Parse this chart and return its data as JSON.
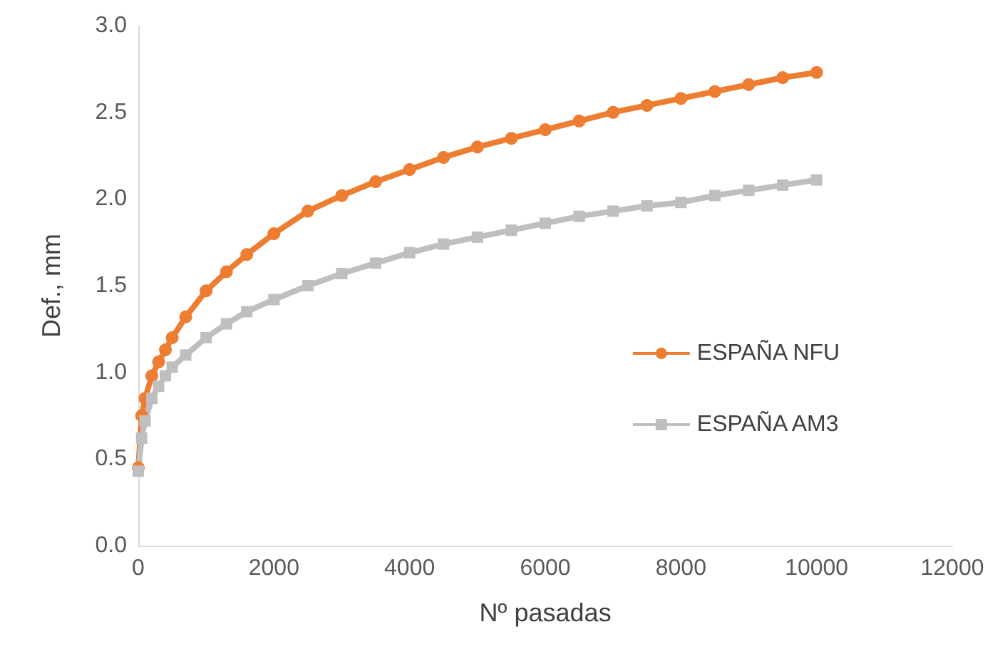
{
  "chart_data": {
    "type": "line",
    "xlabel": "Nº pasadas",
    "ylabel": "Def., mm",
    "x": [
      0,
      50,
      100,
      200,
      300,
      400,
      500,
      700,
      1000,
      1300,
      1600,
      2000,
      2500,
      3000,
      3500,
      4000,
      4500,
      5000,
      5500,
      6000,
      6500,
      7000,
      7500,
      8000,
      8500,
      9000,
      9500,
      10000
    ],
    "series": [
      {
        "name": "ESPAÑA NFU",
        "color": "#ed7d31",
        "marker": "circle",
        "values": [
          0.45,
          0.75,
          0.85,
          0.98,
          1.06,
          1.13,
          1.2,
          1.32,
          1.47,
          1.58,
          1.68,
          1.8,
          1.93,
          2.02,
          2.1,
          2.17,
          2.24,
          2.3,
          2.35,
          2.4,
          2.45,
          2.5,
          2.54,
          2.58,
          2.62,
          2.66,
          2.7,
          2.73
        ]
      },
      {
        "name": "ESPAÑA AM3",
        "color": "#bfbfbf",
        "marker": "square",
        "values": [
          0.43,
          0.62,
          0.72,
          0.85,
          0.92,
          0.98,
          1.03,
          1.1,
          1.2,
          1.28,
          1.35,
          1.42,
          1.5,
          1.57,
          1.63,
          1.69,
          1.74,
          1.78,
          1.82,
          1.86,
          1.9,
          1.93,
          1.96,
          1.98,
          2.02,
          2.05,
          2.08,
          2.11
        ]
      }
    ],
    "xlim": [
      0,
      12000
    ],
    "xticks": [
      0,
      2000,
      4000,
      6000,
      8000,
      10000,
      12000
    ],
    "ylim": [
      0,
      3.0
    ],
    "yticks": [
      {
        "value": 0,
        "label": "0.0"
      },
      {
        "value": 0.5,
        "label": "0.5"
      },
      {
        "value": 1,
        "label": "1.0"
      },
      {
        "value": 1.5,
        "label": "1.5"
      },
      {
        "value": 2,
        "label": "2.0"
      },
      {
        "value": 2.5,
        "label": "2.5"
      },
      {
        "value": 3,
        "label": "3.0"
      }
    ],
    "grid": false,
    "legend": "right"
  }
}
